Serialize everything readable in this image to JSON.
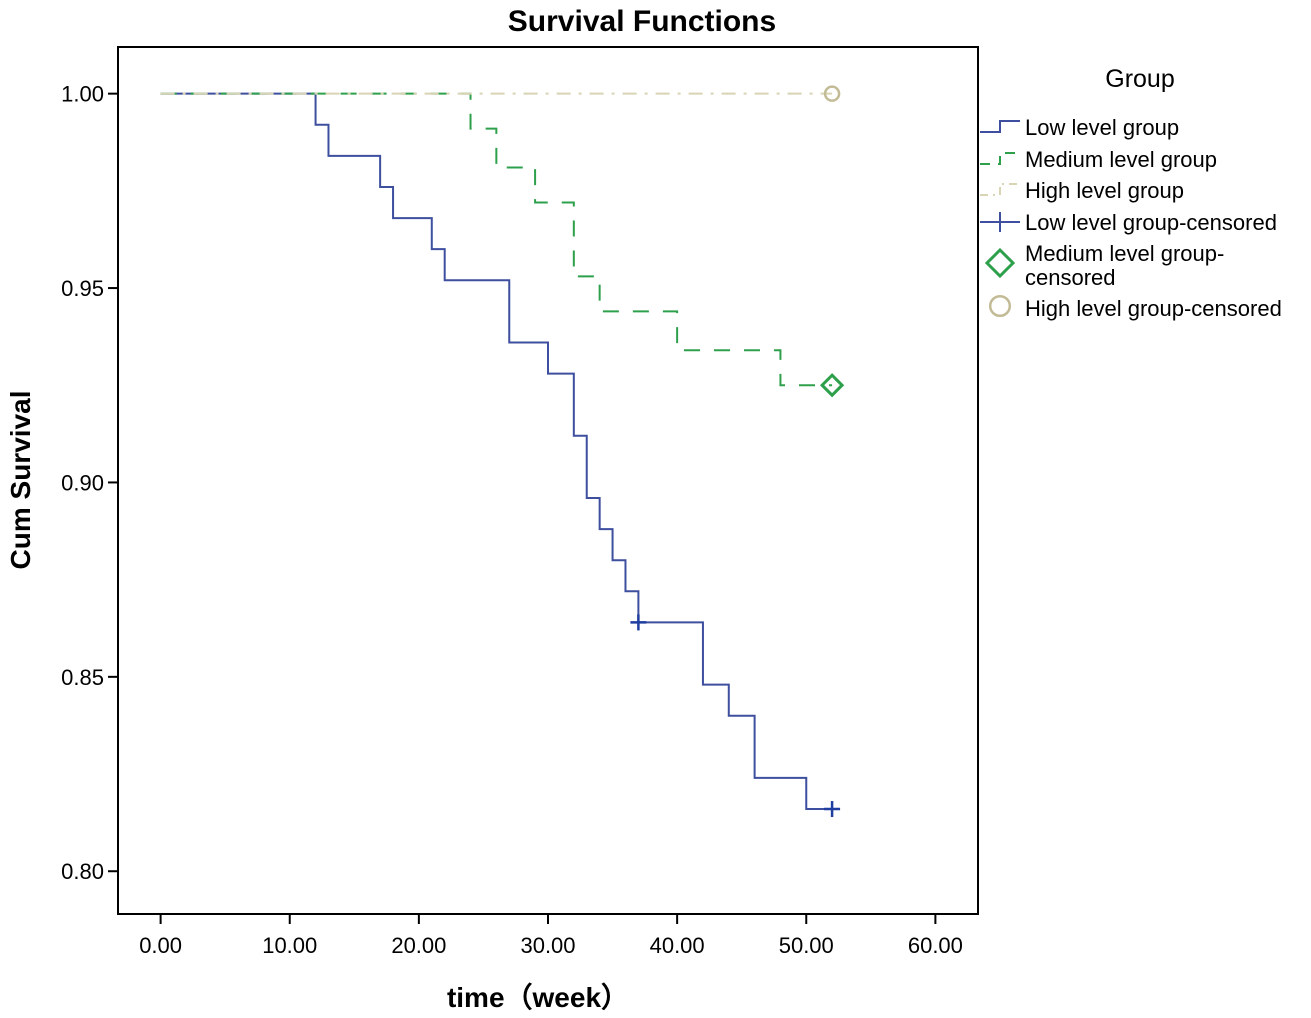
{
  "chart_data": {
    "type": "line",
    "subtype": "kaplan-meier step plot",
    "title": "Survival Functions",
    "xlabel": "time（week）",
    "ylabel": "Cum Survival",
    "xlim": [
      -3.3,
      63.3
    ],
    "ylim": [
      0.789,
      1.012
    ],
    "x_ticks": [
      0,
      10,
      20,
      30,
      40,
      50,
      60
    ],
    "x_tick_labels": [
      "0.00",
      "10.00",
      "20.00",
      "30.00",
      "40.00",
      "50.00",
      "60.00"
    ],
    "y_ticks": [
      0.8,
      0.85,
      0.9,
      0.95,
      1.0
    ],
    "y_tick_labels": [
      "0.80",
      "0.85",
      "0.90",
      "0.95",
      "1.00"
    ],
    "grid": false,
    "legend": {
      "title": "Group",
      "placement": "right",
      "entries": [
        "Low level group",
        "Medium level group",
        "High level group",
        "Low level group-censored",
        "Medium level group-censored",
        "High level group-censored"
      ]
    },
    "series": [
      {
        "name": "Low level group",
        "color": "#3d4f9e",
        "style": "solid",
        "x": [
          0,
          12,
          13,
          17,
          18,
          21,
          22,
          27,
          30,
          32,
          33,
          34,
          35,
          36,
          37,
          42,
          44,
          46,
          50,
          52
        ],
        "y": [
          1.0,
          0.992,
          0.984,
          0.976,
          0.968,
          0.96,
          0.952,
          0.936,
          0.928,
          0.912,
          0.896,
          0.888,
          0.88,
          0.872,
          0.864,
          0.848,
          0.84,
          0.824,
          0.816,
          0.816
        ],
        "censored": [
          {
            "x": 37,
            "y": 0.864
          },
          {
            "x": 52,
            "y": 0.816
          }
        ],
        "censor_marker": "plus",
        "censor_color": "#1f3ea0"
      },
      {
        "name": "Medium level group",
        "color": "#2ea04c",
        "style": "dashed",
        "x": [
          0,
          24,
          26,
          29,
          32,
          34,
          40,
          48,
          52
        ],
        "y": [
          1.0,
          0.991,
          0.981,
          0.972,
          0.953,
          0.944,
          0.934,
          0.925,
          0.925
        ],
        "censored": [
          {
            "x": 52,
            "y": 0.925
          }
        ],
        "censor_marker": "diamond",
        "censor_color": "#2ea04c"
      },
      {
        "name": "High level group",
        "color": "#d8d4b4",
        "style": "dashdot",
        "x": [
          0,
          52
        ],
        "y": [
          1.0,
          1.0
        ],
        "censored": [
          {
            "x": 52,
            "y": 1.0
          }
        ],
        "censor_marker": "circle",
        "censor_color": "#c2bb95"
      }
    ]
  }
}
